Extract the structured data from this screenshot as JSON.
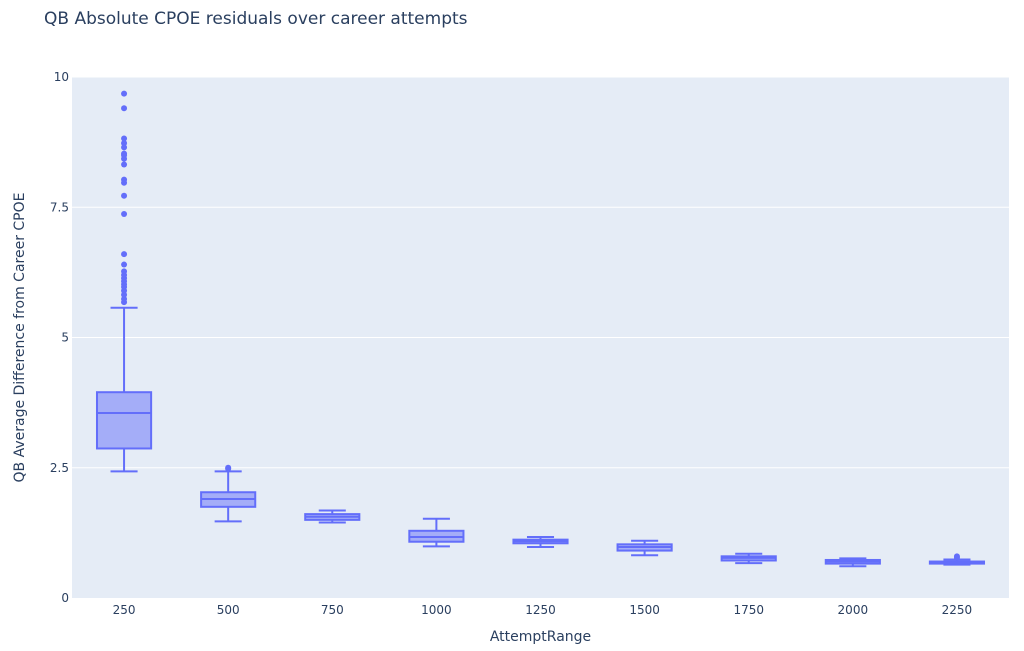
{
  "chart_data": {
    "type": "box",
    "title": "QB Absolute CPOE residuals over career attempts",
    "xlabel": "AttemptRange",
    "ylabel": "QB Average Difference from Career CPOE",
    "categories": [
      "250",
      "500",
      "750",
      "1000",
      "1250",
      "1500",
      "1750",
      "2000",
      "2250"
    ],
    "ylim": [
      0,
      10
    ],
    "yticks": [
      0,
      2.5,
      5,
      7.5,
      10
    ],
    "ytick_labels": [
      "0",
      "2.5",
      "5",
      "7.5",
      "10"
    ],
    "grid": true,
    "colors": {
      "series": "#636efa",
      "fill": "rgba(99,110,250,0.5)",
      "plot_bg": "#e5ecf6",
      "grid": "#ffffff",
      "text": "#2a3f5f"
    },
    "boxes": [
      {
        "category": "250",
        "whisker_low": 2.43,
        "q1": 2.87,
        "median": 3.55,
        "q3": 3.95,
        "whisker_high": 5.57,
        "outliers": [
          5.68,
          5.74,
          5.82,
          5.9,
          5.97,
          6.02,
          6.08,
          6.14,
          6.2,
          6.27,
          6.4,
          6.6,
          7.37,
          7.72,
          7.97,
          8.03,
          8.32,
          8.43,
          8.5,
          8.53,
          8.65,
          8.73,
          8.82,
          9.4,
          9.68
        ]
      },
      {
        "category": "500",
        "whisker_low": 1.47,
        "q1": 1.75,
        "median": 1.9,
        "q3": 2.03,
        "whisker_high": 2.43,
        "outliers": [
          2.48,
          2.5
        ]
      },
      {
        "category": "750",
        "whisker_low": 1.45,
        "q1": 1.5,
        "median": 1.56,
        "q3": 1.61,
        "whisker_high": 1.68,
        "outliers": []
      },
      {
        "category": "1000",
        "whisker_low": 0.99,
        "q1": 1.08,
        "median": 1.17,
        "q3": 1.29,
        "whisker_high": 1.52,
        "outliers": []
      },
      {
        "category": "1250",
        "whisker_low": 0.98,
        "q1": 1.05,
        "median": 1.09,
        "q3": 1.12,
        "whisker_high": 1.17,
        "outliers": []
      },
      {
        "category": "1500",
        "whisker_low": 0.82,
        "q1": 0.91,
        "median": 0.98,
        "q3": 1.03,
        "whisker_high": 1.1,
        "outliers": []
      },
      {
        "category": "1750",
        "whisker_low": 0.67,
        "q1": 0.72,
        "median": 0.77,
        "q3": 0.8,
        "whisker_high": 0.85,
        "outliers": []
      },
      {
        "category": "2000",
        "whisker_low": 0.61,
        "q1": 0.66,
        "median": 0.7,
        "q3": 0.73,
        "whisker_high": 0.76,
        "outliers": []
      },
      {
        "category": "2250",
        "whisker_low": 0.64,
        "q1": 0.66,
        "median": 0.68,
        "q3": 0.7,
        "whisker_high": 0.74,
        "outliers": [
          0.77,
          0.8
        ]
      }
    ]
  }
}
